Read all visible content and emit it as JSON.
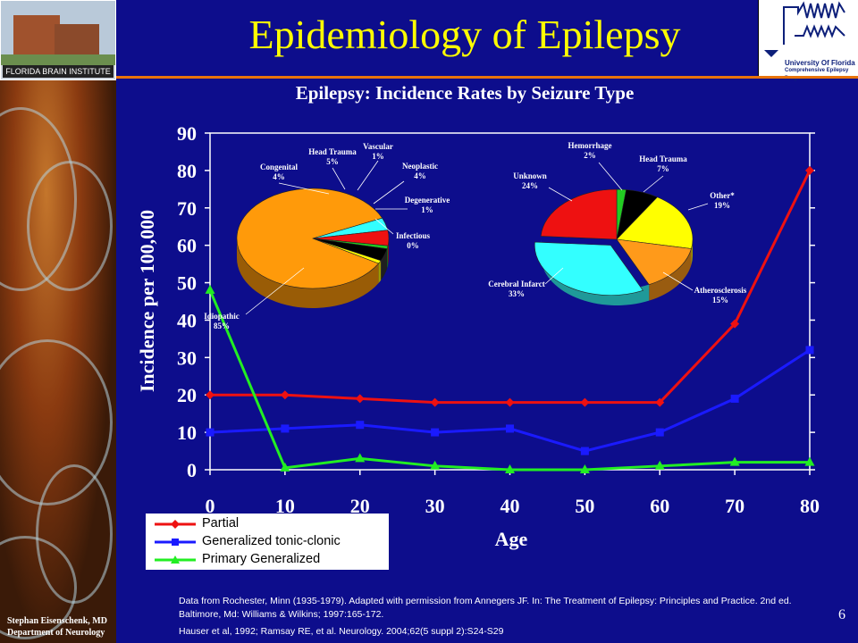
{
  "title": "Epidemiology of Epilepsy",
  "subtitle": "Epilepsy: Incidence Rates by Seizure Type",
  "logos": {
    "brain_institute": "FLORIDA BRAIN INSTITUTE",
    "uf_name": "University Of Florida",
    "uf_program": "Comprehensive Epilepsy Program"
  },
  "footer": {
    "source": "Data from Rochester, Minn (1935-1979). Adapted with permission from Annegers JF. In: The Treatment of Epilepsy: Principles and Practice. 2nd ed. Baltimore, Md: Williams & Wilkins; 1997:165-172.",
    "reference": "Hauser et al, 1992; Ramsay RE, et al. Neurology. 2004;62(5 suppl 2):S24-S29",
    "author_line1": "Stephan Eisenschenk, MD",
    "author_line2": "Department of Neurology",
    "page_number": "6"
  },
  "colors": {
    "background": "#0d0d8c",
    "title": "#ffff00",
    "accent_line": "#e8730c"
  },
  "chart_data": [
    {
      "type": "line",
      "xlabel": "Age",
      "ylabel": "Incidence per 100,000",
      "x": [
        0,
        10,
        20,
        30,
        40,
        50,
        60,
        70,
        80
      ],
      "xlim": [
        0,
        80
      ],
      "ylim": [
        0,
        90
      ],
      "yticks": [
        0,
        10,
        20,
        30,
        40,
        50,
        60,
        70,
        80,
        90
      ],
      "grid": false,
      "legend_position": "bottom-left",
      "series": [
        {
          "name": "Partial",
          "color": "#ee1111",
          "marker": "diamond",
          "values": [
            20,
            20,
            19,
            18,
            18,
            18,
            18,
            39,
            80
          ]
        },
        {
          "name": "Generalized tonic-clonic",
          "color": "#1a1aff",
          "marker": "square",
          "values": [
            10,
            11,
            12,
            10,
            11,
            5,
            10,
            19,
            32
          ]
        },
        {
          "name": "Primary Generalized",
          "color": "#22ee22",
          "marker": "triangle",
          "values": [
            48,
            0.5,
            3,
            1,
            0,
            0,
            1,
            2,
            2
          ]
        }
      ]
    },
    {
      "type": "pie",
      "slices": [
        {
          "label": "Idiopathic",
          "value": 85,
          "pct_label": "85%",
          "color": "#ff9a0a"
        },
        {
          "label": "Congenital",
          "value": 4,
          "pct_label": "4%",
          "color": "#33ffff"
        },
        {
          "label": "Head Trauma",
          "value": 5,
          "pct_label": "5%",
          "color": "#ee1111"
        },
        {
          "label": "Vascular",
          "value": 1,
          "pct_label": "1%",
          "color": "#22cc22"
        },
        {
          "label": "Neoplastic",
          "value": 4,
          "pct_label": "4%",
          "color": "#000000"
        },
        {
          "label": "Degenerative",
          "value": 1,
          "pct_label": "1%",
          "color": "#ffff00"
        },
        {
          "label": "Infectious",
          "value": 0,
          "pct_label": "0%",
          "color": "#ff9a0a"
        }
      ]
    },
    {
      "type": "pie",
      "slices": [
        {
          "label": "Hemorrhage",
          "value": 2,
          "pct_label": "2%",
          "color": "#22cc22"
        },
        {
          "label": "Head Trauma",
          "value": 7,
          "pct_label": "7%",
          "color": "#000000"
        },
        {
          "label": "Other*",
          "value": 19,
          "pct_label": "19%",
          "color": "#ffff00"
        },
        {
          "label": "Atherosclerosis",
          "value": 15,
          "pct_label": "15%",
          "color": "#ff9a1a"
        },
        {
          "label": "Cerebral Infarct",
          "value": 33,
          "pct_label": "33%",
          "color": "#33ffff"
        },
        {
          "label": "Unknown",
          "value": 24,
          "pct_label": "24%",
          "color": "#ee1111"
        }
      ]
    }
  ]
}
